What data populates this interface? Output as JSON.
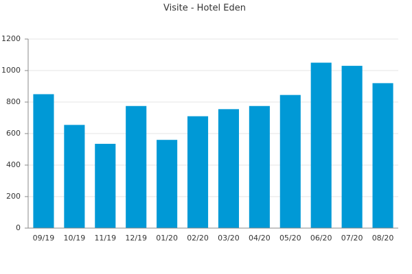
{
  "chart_data": {
    "type": "bar",
    "title": "Visite - Hotel Eden",
    "categories": [
      "09/19",
      "10/19",
      "11/19",
      "12/19",
      "01/20",
      "02/20",
      "03/20",
      "04/20",
      "05/20",
      "06/20",
      "07/20",
      "08/20"
    ],
    "values": [
      850,
      655,
      535,
      775,
      560,
      710,
      755,
      775,
      845,
      1050,
      1030,
      920
    ],
    "color": "#0099d6",
    "ylim": [
      0,
      1200
    ],
    "yticks": [
      0,
      200,
      400,
      600,
      800,
      1000,
      1200
    ],
    "grid": true
  }
}
